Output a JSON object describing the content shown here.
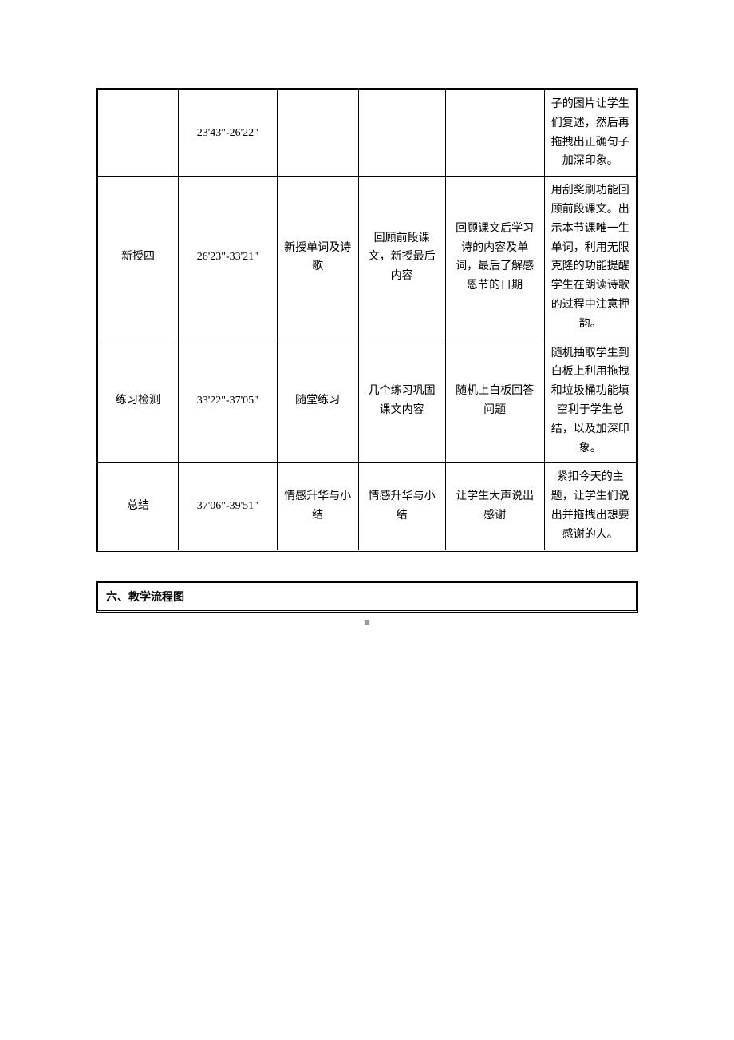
{
  "table": {
    "rows": [
      {
        "c1": "",
        "c2": "23'43\"-26'22\"",
        "c3": "",
        "c4": "",
        "c5": "",
        "c6": "子的图片让学生们复述，然后再拖拽出正确句子加深印象。"
      },
      {
        "c1": "新授四",
        "c2": "26'23\"-33'21\"",
        "c3": "新授单词及诗歌",
        "c4": "回顾前段课文，新授最后内容",
        "c5": "回顾课文后学习诗的内容及单词，最后了解感恩节的日期",
        "c6": "用刮奖刷功能回顾前段课文。出示本节课唯一生单词，利用无限克隆的功能提醒学生在朗读诗歌的过程中注意押韵。"
      },
      {
        "c1": "练习检测",
        "c2": "33'22\"-37'05\"",
        "c3": "随堂练习",
        "c4": "几个练习巩固课文内容",
        "c5": "随机上白板回答问题",
        "c6": "随机抽取学生到白板上利用拖拽和垃圾桶功能填空利于学生总结，以及加深印象。"
      },
      {
        "c1": "总结",
        "c2": "37'06\"-39'51\"",
        "c3": "情感升华与小结",
        "c4": "情感升华与小结",
        "c5": "让学生大声说出感谢",
        "c6": "紧扣今天的主题，让学生们说出并拖拽出想要感谢的人。"
      }
    ]
  },
  "section_title": "六、教学流程图",
  "page_indicator": "■"
}
